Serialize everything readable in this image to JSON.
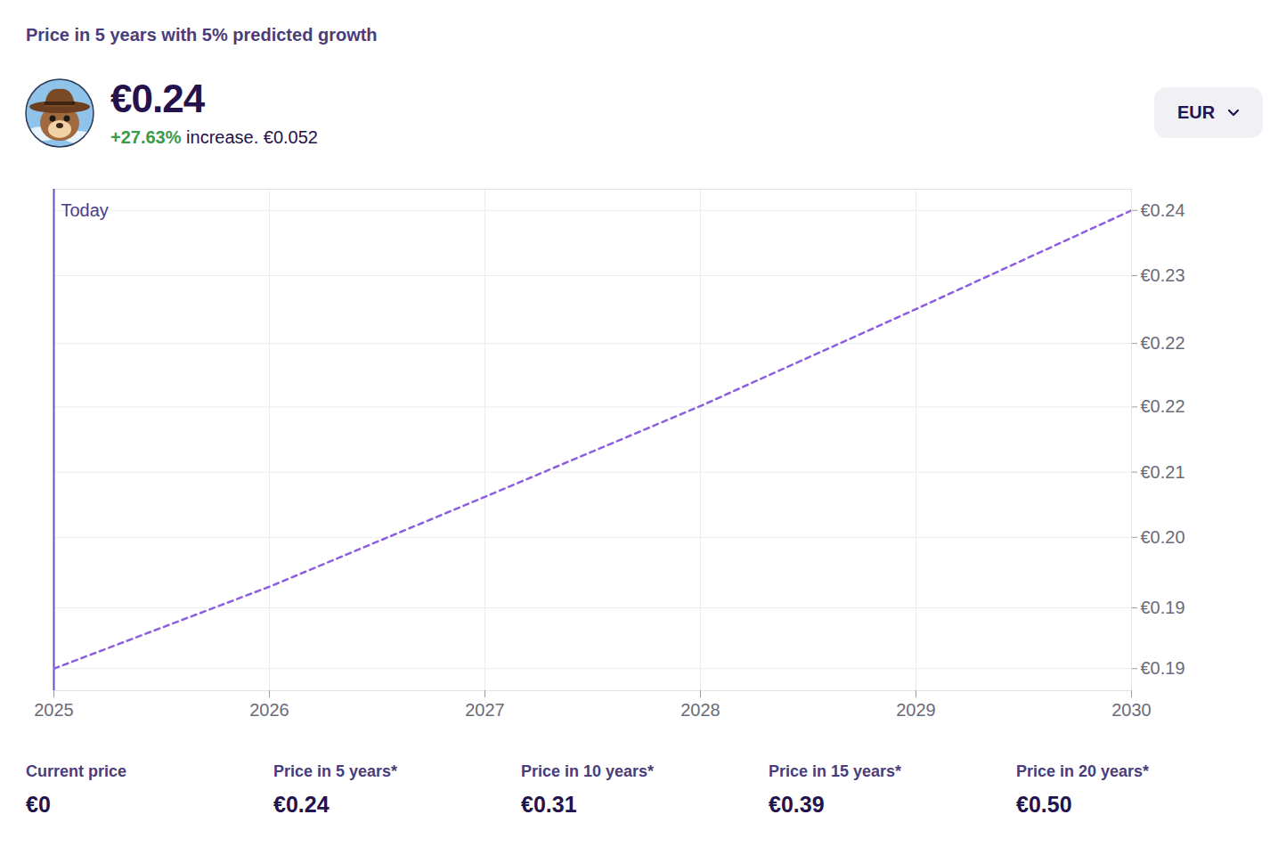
{
  "header": {
    "price": "€0.24",
    "change": "+27.63%",
    "change_text": "increase. €0.052",
    "currency": "EUR"
  },
  "chart_data": {
    "type": "line",
    "title": "Price in 5 years with 5% predicted growth",
    "x": [
      2025,
      2026,
      2027,
      2028,
      2029,
      2030
    ],
    "values": [
      0.188,
      0.1973,
      0.2075,
      0.2178,
      0.2288,
      0.24
    ],
    "color": "#8b5fe0",
    "line_style": "dashed",
    "grid": true,
    "xlim": [
      2025,
      2030
    ],
    "xticks": [
      2025,
      2026,
      2027,
      2028,
      2029,
      2030
    ],
    "ylim": [
      0.1855,
      0.2424
    ],
    "yticks": [
      {
        "value": 0.188,
        "label": "€0.19"
      },
      {
        "value": 0.1949,
        "label": "€0.19"
      },
      {
        "value": 0.2029,
        "label": "€0.20"
      },
      {
        "value": 0.2103,
        "label": "€0.21"
      },
      {
        "value": 0.2177,
        "label": "€0.22"
      },
      {
        "value": 0.2249,
        "label": "€0.22"
      },
      {
        "value": 0.2326,
        "label": "€0.23"
      },
      {
        "value": 0.24,
        "label": "€0.24"
      }
    ],
    "annotations": [
      {
        "text": "Today",
        "x": 2025
      }
    ]
  },
  "stats": [
    {
      "label": "Current price",
      "value": "€0"
    },
    {
      "label": "Price in 5 years*",
      "value": "€0.24"
    },
    {
      "label": "Price in 10 years*",
      "value": "€0.31"
    },
    {
      "label": "Price in 15 years*",
      "value": "€0.39"
    },
    {
      "label": "Price in 20 years*",
      "value": "€0.50"
    }
  ]
}
